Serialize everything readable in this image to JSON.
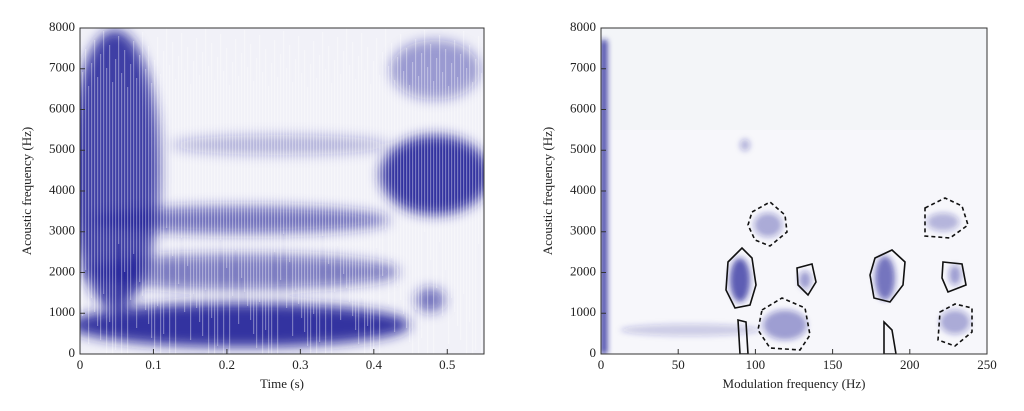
{
  "chart_data": [
    {
      "type": "spectrogram",
      "xlabel": "Time (s)",
      "ylabel": "Acoustic frequency (Hz)",
      "xlim": [
        0,
        0.55
      ],
      "xticks": [
        0,
        0.1,
        0.2,
        0.3,
        0.4,
        0.5
      ],
      "ylim": [
        0,
        8000
      ],
      "yticks": [
        0,
        1000,
        2000,
        3000,
        4000,
        5000,
        6000,
        7000,
        8000
      ]
    },
    {
      "type": "spectrogram",
      "xlabel": "Modulation frequency (Hz)",
      "ylabel": "Acoustic frequency (Hz)",
      "xlim": [
        0,
        250
      ],
      "xticks": [
        0,
        50,
        100,
        150,
        200,
        250
      ],
      "ylim": [
        0,
        8000
      ],
      "yticks": [
        0,
        1000,
        2000,
        3000,
        4000,
        5000,
        6000,
        7000,
        8000
      ]
    }
  ]
}
